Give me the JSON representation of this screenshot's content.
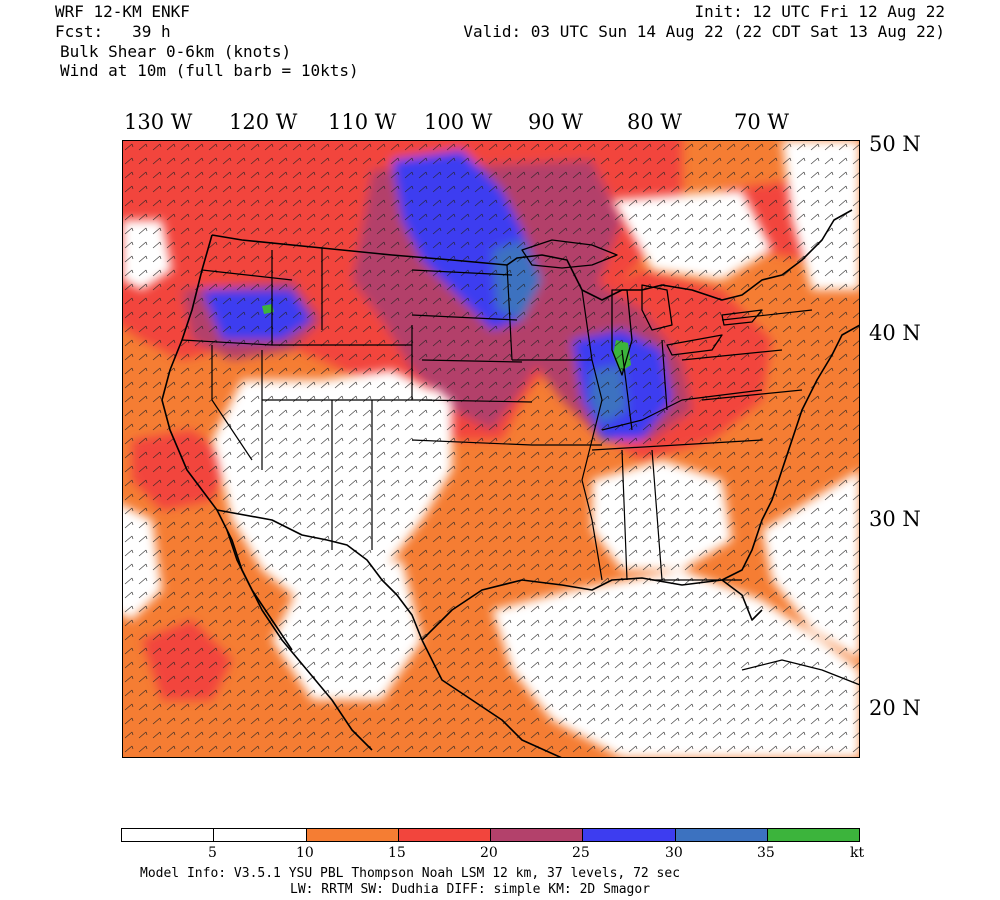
{
  "header": {
    "model_title": "WRF 12-KM ENKF",
    "forecast_hour": "Fcst:   39 h",
    "field_name": "Bulk Shear 0-6km (knots)",
    "wind_note": "Wind at 10m (full barb = 10kts)",
    "init_time": "Init: 12 UTC Fri 12 Aug 22",
    "valid_time": "Valid: 03 UTC Sun 14 Aug 22 (22 CDT Sat 13 Aug 22)"
  },
  "longitude_labels": [
    "130 W",
    "120 W",
    "110 W",
    "100 W",
    "90 W",
    "80 W",
    "70 W"
  ],
  "latitude_labels": [
    "50 N",
    "40 N",
    "30 N",
    "20 N"
  ],
  "colorbar": {
    "unit": "kt",
    "tick_labels": [
      "5",
      "10",
      "15",
      "20",
      "25",
      "30",
      "35"
    ],
    "segments": [
      {
        "range": "0-5",
        "color": "#ffffff"
      },
      {
        "range": "5-10",
        "color": "#ffffff"
      },
      {
        "range": "10-15",
        "color": "#f57d33"
      },
      {
        "range": "15-20",
        "color": "#f2453d"
      },
      {
        "range": "20-25",
        "color": "#b3416b"
      },
      {
        "range": "25-30",
        "color": "#3d3df0"
      },
      {
        "range": "30-35",
        "color": "#3c72c0"
      },
      {
        "range": "35+",
        "color": "#3cb43c"
      }
    ]
  },
  "footer": {
    "line1": "Model Info: V3.5.1       YSU PBL  Thompson     Noah LSM  12 km,    37 levels,    72 sec",
    "line2": "LW: RRTM SW: Dudhia  DIFF: simple KM: 2D Smagor"
  }
}
